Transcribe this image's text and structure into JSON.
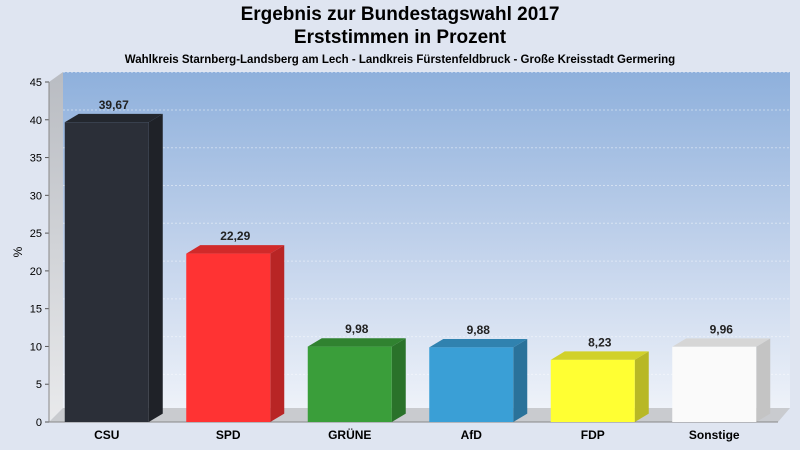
{
  "chart_data": {
    "type": "bar",
    "title": "Ergebnis zur Bundestagswahl 2017",
    "subtitle": "Erststimmen in Prozent",
    "caption": "Wahlkreis Starnberg-Landsberg am Lech - Landkreis Fürstenfeldbruck - Große Kreisstadt Germering",
    "ylabel": "%",
    "xlabel": "",
    "ylim": [
      0,
      45
    ],
    "yticks": [
      "0",
      "5",
      "10",
      "15",
      "20",
      "25",
      "30",
      "35",
      "40",
      "45"
    ],
    "categories": [
      "CSU",
      "SPD",
      "GRÜNE",
      "AfD",
      "FDP",
      "Sonstige"
    ],
    "values": [
      39.67,
      22.29,
      9.98,
      9.88,
      8.23,
      9.96
    ],
    "value_labels": [
      "39,67",
      "22,29",
      "9,98",
      "9,88",
      "8,23",
      "9,96"
    ],
    "colors": [
      "#2b2f38",
      "#ff3333",
      "#3a9e3a",
      "#3a9fd6",
      "#ffff33",
      "#fafafa"
    ],
    "grid": true,
    "legend": "none"
  }
}
